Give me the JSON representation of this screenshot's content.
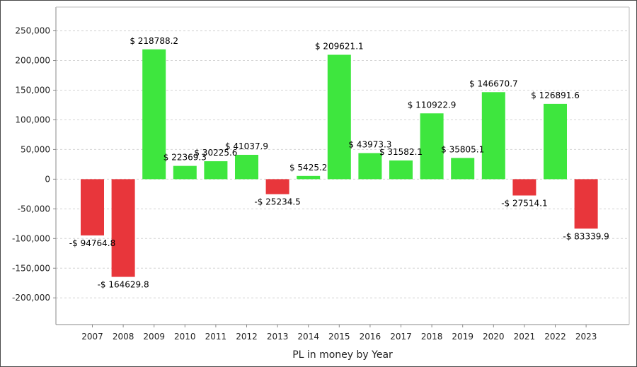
{
  "chart_data": {
    "type": "bar",
    "xlabel": "PL in money by Year",
    "ylabel": "",
    "ylim": [
      -245000,
      290000
    ],
    "yticks": [
      -200000,
      -150000,
      -100000,
      -50000,
      0,
      50000,
      100000,
      150000,
      200000,
      250000
    ],
    "ytick_labels": [
      "-200,000",
      "-150,000",
      "-100,000",
      "-50,000",
      "0",
      "50,000",
      "100,000",
      "150,000",
      "200,000",
      "250,000"
    ],
    "grid": true,
    "colors": {
      "positive": "#3ee63e",
      "negative": "#e8363b"
    },
    "categories": [
      "2007",
      "2008",
      "2009",
      "2010",
      "2011",
      "2012",
      "2013",
      "2014",
      "2015",
      "2016",
      "2017",
      "2018",
      "2019",
      "2020",
      "2021",
      "2022",
      "2023"
    ],
    "values": [
      -94764.8,
      -164629.8,
      218788.2,
      22369.3,
      30225.6,
      41037.9,
      -25234.5,
      5425.2,
      209621.1,
      43973.3,
      31582.1,
      110922.9,
      35805.1,
      146670.7,
      -27514.1,
      126891.6,
      -83339.9
    ],
    "data_labels": [
      "-$ 94764.8",
      "-$ 164629.8",
      "$ 218788.2",
      "$ 22369.3",
      "$ 30225.6",
      "$ 41037.9",
      "-$ 25234.5",
      "$ 5425.2",
      "$ 209621.1",
      "$ 43973.3",
      "$ 31582.1",
      "$ 110922.9",
      "$ 35805.1",
      "$ 146670.7",
      "-$ 27514.1",
      "$ 126891.6",
      "-$ 83339.9"
    ]
  }
}
